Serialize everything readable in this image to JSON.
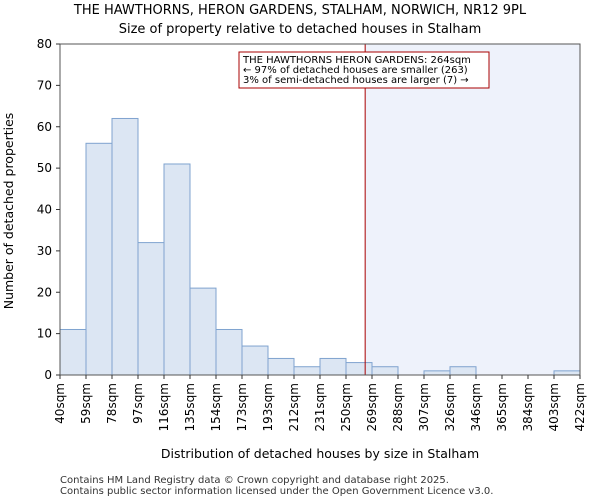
{
  "chart_data": {
    "type": "bar",
    "title": "THE HAWTHORNS, HERON GARDENS, STALHAM, NORWICH, NR12 9PL",
    "subtitle": "Size of property relative to detached houses in Stalham",
    "xlabel": "Distribution of detached houses by size in Stalham",
    "ylabel": "Number of detached properties",
    "ylim": [
      0,
      80
    ],
    "yticks": [
      0,
      10,
      20,
      30,
      40,
      50,
      60,
      70,
      80
    ],
    "bin_edges": [
      "40sqm",
      "59sqm",
      "78sqm",
      "97sqm",
      "116sqm",
      "135sqm",
      "154sqm",
      "173sqm",
      "193sqm",
      "212sqm",
      "231sqm",
      "250sqm",
      "269sqm",
      "288sqm",
      "307sqm",
      "326sqm",
      "346sqm",
      "365sqm",
      "384sqm",
      "403sqm",
      "422sqm"
    ],
    "values": [
      11,
      56,
      62,
      32,
      51,
      21,
      11,
      7,
      4,
      2,
      4,
      3,
      2,
      0,
      1,
      2,
      0,
      0,
      0,
      1
    ],
    "marker_value_sqm": 264,
    "colors": {
      "bar_fill": "#dce6f3",
      "bar_stroke": "#7fa3cf",
      "marker": "#aa0000",
      "highlight": "#eef2fb"
    },
    "annotation": {
      "line1": "THE HAWTHORNS HERON GARDENS: 264sqm",
      "line2": "← 97% of detached houses are smaller (263)",
      "line3": "3% of semi-detached houses are larger (7) →"
    },
    "footer": {
      "line1": "Contains HM Land Registry data © Crown copyright and database right 2025.",
      "line2": "Contains public sector information licensed under the Open Government Licence v3.0."
    }
  }
}
